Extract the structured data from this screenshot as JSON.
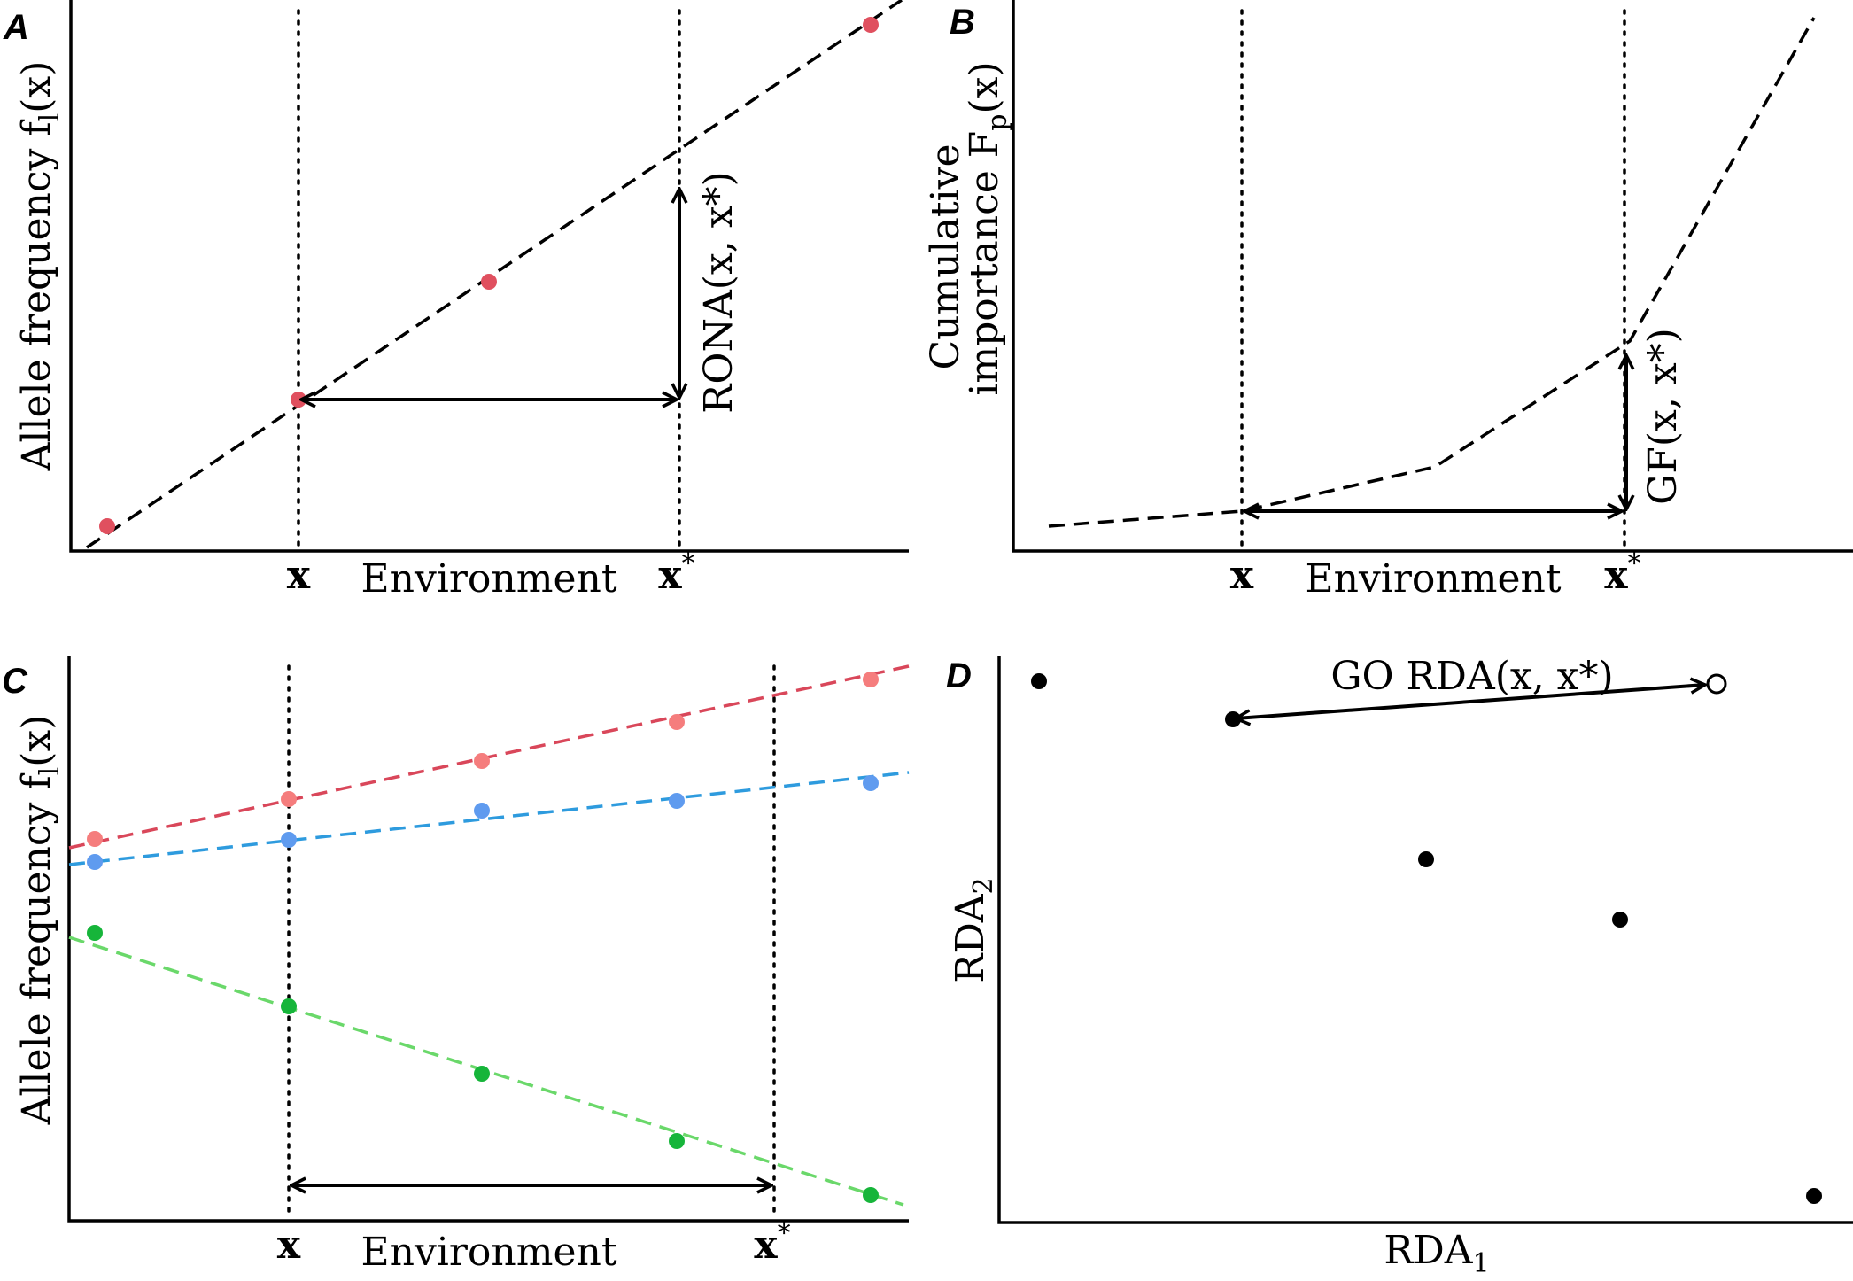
{
  "colors": {
    "red_point": "#e0505f",
    "pink_point": "#f57d7d",
    "red_line": "#d9475a",
    "blue_point": "#5f9bef",
    "blue_line": "#2e9bde",
    "green_point": "#16b53a",
    "green_line": "#6ad86a",
    "black": "#000000"
  },
  "panels": {
    "A": {
      "letter": "A",
      "ylabel_text": "Allele frequency f",
      "ylabel_sub": "l",
      "ylabel_arg": "(x)",
      "xlabel": "Environment",
      "x_marker": "x",
      "xstar_marker": "x",
      "xstar_sup": "*",
      "arrow_label": "RONA(x, x*)"
    },
    "B": {
      "letter": "B",
      "ylabel_line1": "Cumulative",
      "ylabel_line2": "importance F",
      "ylabel_sub": "p",
      "ylabel_arg": "(x)",
      "xlabel": "Environment",
      "x_marker": "x",
      "xstar_marker": "x",
      "xstar_sup": "*",
      "arrow_label": "GF(x, x*)"
    },
    "C": {
      "letter": "C",
      "ylabel_text": "Allele frequency f",
      "ylabel_sub": "l",
      "ylabel_arg": "(x)",
      "xlabel": "Environment",
      "x_marker": "x",
      "xstar_marker": "x",
      "xstar_sup": "*"
    },
    "D": {
      "letter": "D",
      "arrow_label": "GO RDA(x, x*)",
      "xlabel_main": "RDA",
      "xlabel_sub": "1",
      "ylabel_main": "RDA",
      "ylabel_sub": "2"
    }
  }
}
